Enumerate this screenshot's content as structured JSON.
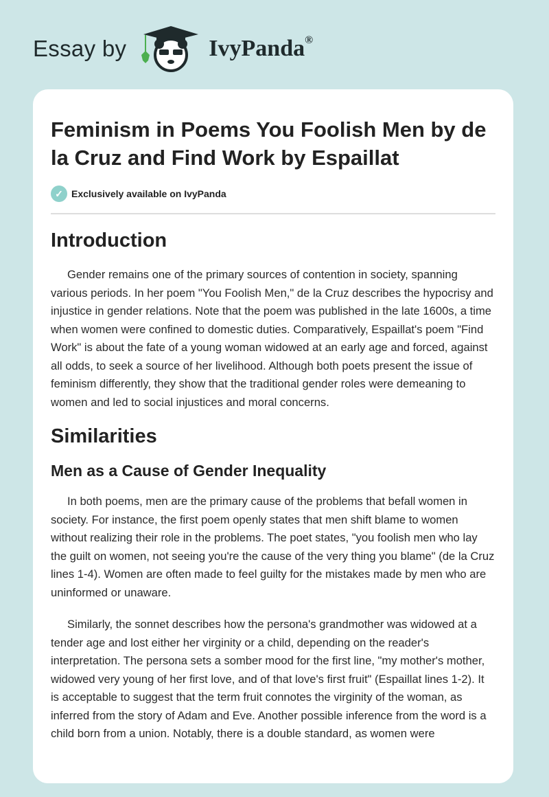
{
  "header": {
    "essay_by": "Essay by",
    "brand": "IvyPanda",
    "registered": "®",
    "logo_icon": "panda-graduation-cap-logo"
  },
  "article": {
    "title": "Feminism in Poems You Foolish Men by de la Cruz and Find Work by Espaillat",
    "exclusive": "Exclusively available on IvyPanda",
    "sections": [
      {
        "heading": "Introduction",
        "paragraphs": [
          "Gender remains one of the primary sources of contention in society, spanning various periods. In her poem \"You Foolish Men,\" de la Cruz describes the hypocrisy and injustice in gender relations. Note that the poem was published in the late 1600s, a time when women were confined to domestic duties. Comparatively, Espaillat's poem \"Find Work\" is about the fate of a young woman widowed at an early age and forced, against all odds, to seek a source of her livelihood. Although both poets present the issue of feminism differently, they show that the traditional gender roles were demeaning to women and led to social injustices and moral concerns."
        ]
      },
      {
        "heading": "Similarities",
        "subheading": "Men as a Cause of Gender Inequality",
        "paragraphs": [
          "In both poems, men are the primary cause of the problems that befall women in society. For instance, the first poem openly states that men shift blame to women without realizing their role in the problems. The poet states, \"you foolish men who lay the guilt on women, not seeing you're the cause of the very thing you blame\" (de la Cruz lines 1-4). Women are often made to feel guilty for the mistakes made by men who are uninformed or unaware.",
          "Similarly, the sonnet describes how the persona's grandmother was widowed at a tender age and lost either her virginity or a child, depending on the reader's interpretation. The persona sets a somber mood for the first line, \"my mother's mother, widowed very young of her first love, and of that love's first fruit\" (Espaillat lines 1-2). It is acceptable to suggest that the term fruit connotes the virginity of the woman, as inferred from the story of Adam and Eve. Another possible inference from the word is a child born from a union. Notably, there is a double standard, as women were"
        ]
      }
    ]
  }
}
